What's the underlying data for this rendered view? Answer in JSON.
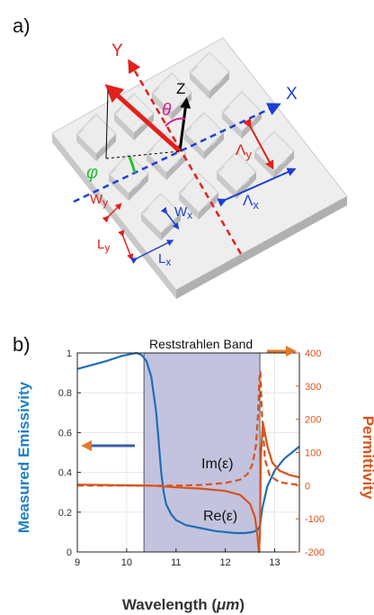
{
  "panel_a": {
    "label": "a)",
    "axes": {
      "x": "X",
      "y": "Y",
      "z": "Z"
    },
    "angles": {
      "theta": "θ",
      "phi": "φ"
    },
    "periods": {
      "lambda_x_base": "Λ",
      "lambda_x_sub": "x",
      "lambda_y_base": "Λ",
      "lambda_y_sub": "y"
    },
    "dims": {
      "wy_base": "W",
      "wy_sub": "y",
      "wx_base": "W",
      "wx_sub": "x",
      "ly_base": "L",
      "ly_sub": "y",
      "lx_base": "L",
      "lx_sub": "x"
    },
    "colors": {
      "x_axis": "#1e3fd6",
      "y_axis": "#e3201b",
      "z_axis": "#000000",
      "theta": "#d6218a",
      "phi": "#22c233"
    }
  },
  "panel_b": {
    "label": "b)",
    "band_label": "Reststrahlen Band",
    "im_label": "Im(ε)",
    "re_label": "Re(ε)"
  },
  "chart_data": {
    "type": "line",
    "xlabel": "Wavelength (",
    "xlabel_unit": "μm",
    "xlabel_close": ")",
    "ylabel_left": "Measured Emissivity",
    "ylabel_right": "Permittivity",
    "xlim": [
      9,
      13.5
    ],
    "ylim_left": [
      0,
      1
    ],
    "ylim_right": [
      -200,
      400
    ],
    "x_ticks": [
      "9",
      "10",
      "11",
      "12",
      "13"
    ],
    "y_left_ticks": [
      "0",
      "0.2",
      "0.4",
      "0.6",
      "0.8",
      "1"
    ],
    "y_right_ticks": [
      "-200",
      "-100",
      "0",
      "100",
      "200",
      "300",
      "400"
    ],
    "band": [
      10.35,
      12.7
    ],
    "grid": true,
    "series": [
      {
        "name": "emissivity",
        "axis": "left",
        "color": "#1f6fb4",
        "style": "solid",
        "x": [
          9.0,
          9.3,
          9.6,
          9.9,
          10.1,
          10.2,
          10.3,
          10.4,
          10.5,
          10.6,
          10.65,
          10.7,
          10.75,
          10.8,
          10.9,
          11.0,
          11.2,
          11.5,
          11.8,
          12.0,
          12.2,
          12.4,
          12.55,
          12.65,
          12.7,
          12.75,
          12.85,
          13.0,
          13.2,
          13.5
        ],
        "y": [
          0.92,
          0.94,
          0.96,
          0.985,
          0.995,
          1.0,
          0.99,
          0.96,
          0.88,
          0.7,
          0.55,
          0.4,
          0.3,
          0.24,
          0.19,
          0.16,
          0.135,
          0.12,
          0.105,
          0.1,
          0.095,
          0.095,
          0.1,
          0.11,
          0.13,
          0.22,
          0.33,
          0.41,
          0.47,
          0.53
        ]
      },
      {
        "name": "Re(ε)",
        "axis": "right",
        "color": "#d95319",
        "style": "solid",
        "x": [
          9.0,
          9.5,
          10.0,
          10.5,
          11.0,
          11.5,
          12.0,
          12.3,
          12.5,
          12.6,
          12.65,
          12.68,
          12.7,
          12.72,
          12.76,
          12.8,
          12.85,
          12.95,
          13.1,
          13.3,
          13.5
        ],
        "y": [
          3,
          2,
          1,
          0,
          -5,
          -9,
          -16,
          -28,
          -55,
          -95,
          -150,
          -200,
          -150,
          90,
          190,
          160,
          120,
          70,
          45,
          32,
          25
        ]
      },
      {
        "name": "Im(ε)",
        "axis": "right",
        "color": "#d95319",
        "style": "dashed",
        "x": [
          9.0,
          10.0,
          11.0,
          11.5,
          12.0,
          12.3,
          12.45,
          12.55,
          12.62,
          12.66,
          12.69,
          12.71,
          12.74,
          12.8,
          12.9,
          13.1,
          13.5
        ],
        "y": [
          0,
          0,
          0,
          2,
          8,
          18,
          35,
          65,
          120,
          210,
          320,
          345,
          220,
          80,
          30,
          10,
          2
        ]
      }
    ]
  }
}
